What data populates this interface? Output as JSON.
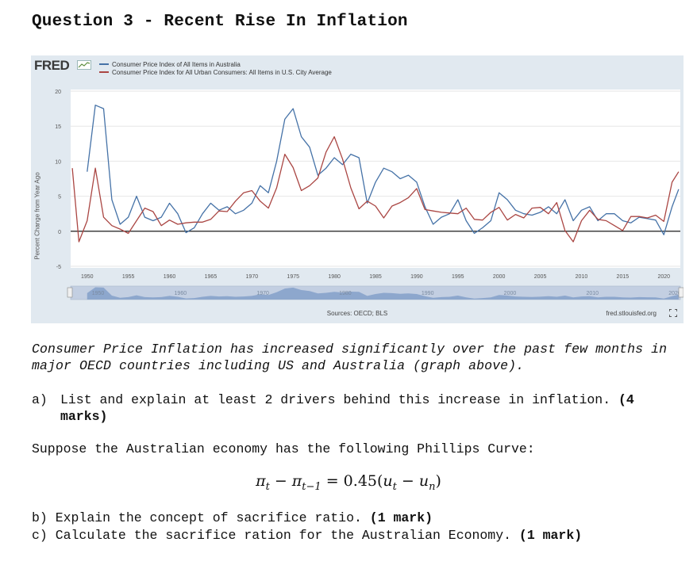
{
  "heading": "Question 3 - Recent Rise In Inflation",
  "fred": {
    "logo": "FRED",
    "logo_icon": "fred-graph-icon",
    "sources": "Sources: OECD; BLS",
    "credit": "fred.stlouisfed.org",
    "fullscreen_icon": "fullscreen-icon"
  },
  "chart_data": {
    "type": "line",
    "ylabel": "Percent Change from Year Ago",
    "xlabel": "",
    "ylim": [
      -5,
      20
    ],
    "xlim": [
      1948,
      2022
    ],
    "y_ticks": [
      "20",
      "15",
      "10",
      "5",
      "0",
      "-5"
    ],
    "x_ticks": [
      "1950",
      "1955",
      "1960",
      "1965",
      "1970",
      "1975",
      "1980",
      "1985",
      "1990",
      "1995",
      "2000",
      "2005",
      "2010",
      "2015",
      "2020"
    ],
    "navigator_labels": [
      "1950",
      "1960",
      "1970",
      "1980",
      "1990",
      "2000",
      "2010",
      "2020"
    ],
    "grid": true,
    "legend_position": "top-left",
    "series": [
      {
        "name": "Consumer Price Index of All Items in Australia",
        "color": "#4572a7",
        "x": [
          1950,
          1951,
          1952,
          1953,
          1954,
          1955,
          1956,
          1957,
          1958,
          1959,
          1960,
          1961,
          1962,
          1963,
          1964,
          1965,
          1966,
          1967,
          1968,
          1969,
          1970,
          1971,
          1972,
          1973,
          1974,
          1975,
          1976,
          1977,
          1978,
          1979,
          1980,
          1981,
          1982,
          1983,
          1984,
          1985,
          1986,
          1987,
          1988,
          1989,
          1990,
          1991,
          1992,
          1993,
          1994,
          1995,
          1996,
          1997,
          1998,
          1999,
          2000,
          2001,
          2002,
          2003,
          2004,
          2005,
          2006,
          2007,
          2008,
          2009,
          2010,
          2011,
          2012,
          2013,
          2014,
          2015,
          2016,
          2017,
          2018,
          2019,
          2020,
          2021,
          2021.8
        ],
        "y": [
          8.5,
          18.0,
          17.5,
          4.5,
          1.0,
          2.0,
          5.0,
          2.0,
          1.5,
          2.0,
          4.0,
          2.5,
          -0.2,
          0.5,
          2.5,
          4.0,
          3.0,
          3.5,
          2.5,
          3.0,
          4.0,
          6.5,
          5.5,
          10.0,
          16.0,
          17.5,
          13.5,
          12.0,
          8.0,
          9.0,
          10.5,
          9.5,
          11.0,
          10.5,
          4.0,
          7.0,
          9.0,
          8.5,
          7.5,
          8.0,
          7.0,
          3.5,
          1.0,
          2.0,
          2.5,
          4.5,
          1.5,
          -0.3,
          0.5,
          1.5,
          5.5,
          4.5,
          3.0,
          2.5,
          2.3,
          2.7,
          3.5,
          2.5,
          4.5,
          1.5,
          3.0,
          3.5,
          1.5,
          2.5,
          2.5,
          1.5,
          1.2,
          2.0,
          1.8,
          1.6,
          -0.5,
          3.5,
          6.0
        ]
      },
      {
        "name": "Consumer Price Index for All Urban Consumers: All Items in U.S. City Average",
        "color": "#aa4643",
        "x": [
          1948.2,
          1949,
          1950,
          1951,
          1952,
          1953,
          1954,
          1955,
          1956,
          1957,
          1958,
          1959,
          1960,
          1961,
          1962,
          1963,
          1964,
          1965,
          1966,
          1967,
          1968,
          1969,
          1970,
          1971,
          1972,
          1973,
          1974,
          1975,
          1976,
          1977,
          1978,
          1979,
          1980,
          1981,
          1982,
          1983,
          1984,
          1985,
          1986,
          1987,
          1988,
          1989,
          1990,
          1991,
          1992,
          1993,
          1994,
          1995,
          1996,
          1997,
          1998,
          1999,
          2000,
          2001,
          2002,
          2003,
          2004,
          2005,
          2006,
          2007,
          2008,
          2009,
          2010,
          2011,
          2012,
          2013,
          2014,
          2015,
          2016,
          2017,
          2018,
          2019,
          2020,
          2021,
          2021.8
        ],
        "y": [
          9.0,
          -1.5,
          1.5,
          9.0,
          2.0,
          0.8,
          0.3,
          -0.3,
          1.5,
          3.3,
          2.8,
          0.8,
          1.6,
          1.0,
          1.2,
          1.3,
          1.3,
          1.7,
          2.9,
          2.8,
          4.3,
          5.5,
          5.8,
          4.3,
          3.3,
          6.2,
          11.0,
          9.1,
          5.8,
          6.5,
          7.6,
          11.3,
          13.5,
          10.3,
          6.2,
          3.2,
          4.3,
          3.6,
          1.9,
          3.6,
          4.1,
          4.8,
          6.1,
          3.1,
          2.9,
          2.7,
          2.6,
          2.5,
          3.3,
          1.7,
          1.6,
          2.7,
          3.4,
          1.6,
          2.4,
          1.9,
          3.3,
          3.4,
          2.5,
          4.1,
          0.1,
          -1.5,
          1.5,
          3.0,
          1.7,
          1.5,
          0.8,
          0.1,
          2.1,
          2.1,
          1.9,
          2.3,
          1.4,
          7.0,
          8.5
        ]
      }
    ]
  },
  "paragraph": "Consumer Price Inflation has increased significantly over the past few months in major OECD countries including US and Australia (graph above).",
  "question_a": {
    "label": "a)",
    "text": "List and explain at least 2 drivers behind this increase in inflation.",
    "marks": "(4 marks)"
  },
  "intro": "Suppose the Australian economy has the following Phillips Curve:",
  "formula": {
    "pi": "π",
    "t": "t",
    "minus": " − ",
    "t1": "t−1",
    "eq": " = 0.45(",
    "u": "u",
    "n": "n",
    "close": ")"
  },
  "question_b": {
    "label": "b)",
    "text": "Explain the concept of sacrifice ratio.",
    "marks": "(1 mark)"
  },
  "question_c": {
    "label": "c)",
    "text": "Calculate the sacrifice ration for the Australian Economy.",
    "marks": "(1 mark)"
  }
}
